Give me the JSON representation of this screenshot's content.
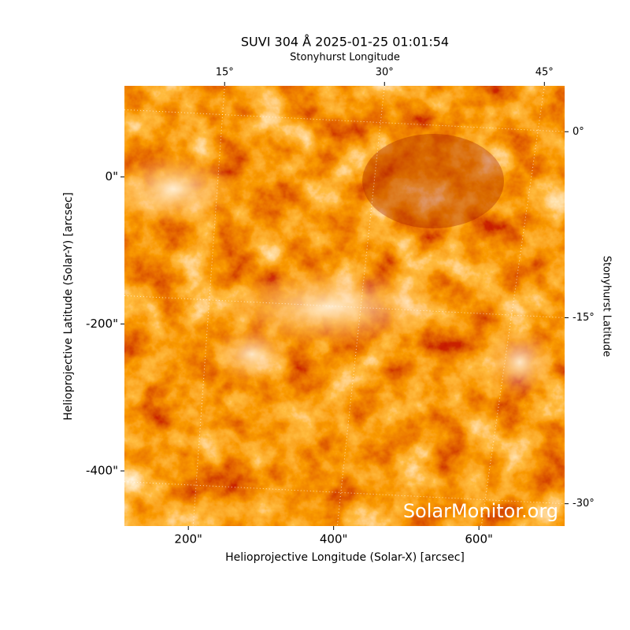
{
  "chart_data": {
    "type": "image",
    "title": "SUVI 304 Å 2025-01-25 01:01:54",
    "xlabel": "Helioprojective Longitude (Solar-X) [arcsec]",
    "ylabel": "Helioprojective Latitude (Solar-Y) [arcsec]",
    "x2label": "Stonyhurst Longitude",
    "y2label": "Stonyhurst Latitude",
    "watermark": "SolarMonitor.org",
    "xlim": [
      112,
      718
    ],
    "ylim": [
      -475,
      124
    ],
    "xticks": [
      {
        "value": 200,
        "label": "200\""
      },
      {
        "value": 400,
        "label": "400\""
      },
      {
        "value": 600,
        "label": "600\""
      }
    ],
    "yticks": [
      {
        "value": 0,
        "label": "0\""
      },
      {
        "value": -200,
        "label": "-200\""
      },
      {
        "value": -400,
        "label": "-400\""
      }
    ],
    "x2lim": [
      5.6,
      46.9
    ],
    "y2lim": [
      -31.8,
      3.7
    ],
    "x2ticks": [
      {
        "value": 15,
        "label": "15°"
      },
      {
        "value": 30,
        "label": "30°"
      },
      {
        "value": 45,
        "label": "45°"
      }
    ],
    "y2ticks": [
      {
        "value": 0,
        "label": "0°"
      },
      {
        "value": -15,
        "label": "-15°"
      },
      {
        "value": -30,
        "label": "-30°"
      }
    ],
    "grid": true
  }
}
